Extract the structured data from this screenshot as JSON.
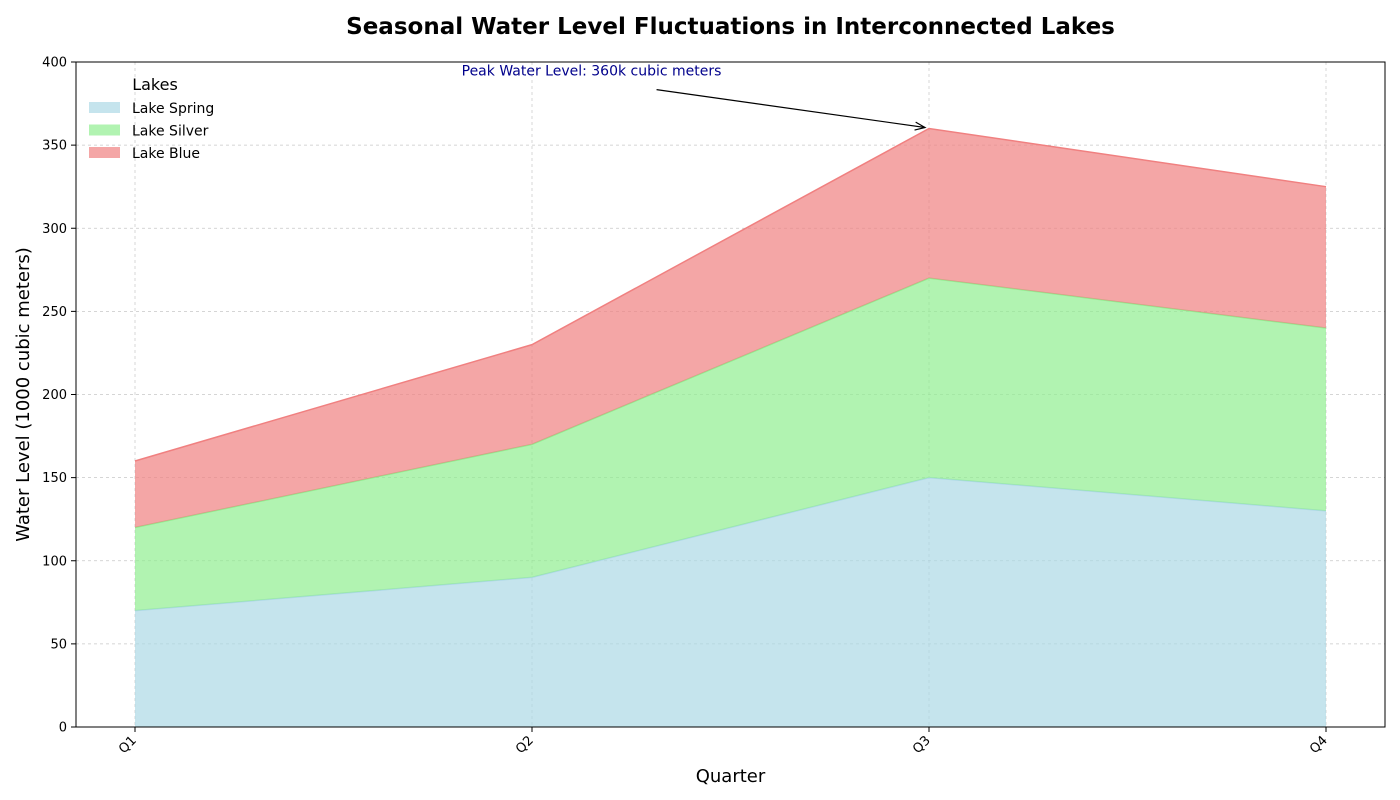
{
  "chart_data": {
    "type": "area",
    "stacked": true,
    "title": "Seasonal Water Level Fluctuations in Interconnected Lakes",
    "xlabel": "Quarter",
    "ylabel": "Water Level (1000 cubic meters)",
    "categories": [
      "Q1",
      "Q2",
      "Q3",
      "Q4"
    ],
    "ylim": [
      0,
      400
    ],
    "yticks": [
      0,
      50,
      100,
      150,
      200,
      250,
      300,
      350,
      400
    ],
    "grid": true,
    "legend": {
      "title": "Lakes",
      "placement": "top-left"
    },
    "series": [
      {
        "name": "Lake Spring",
        "values": [
          70,
          90,
          150,
          130
        ],
        "color": "#add8e6"
      },
      {
        "name": "Lake Silver",
        "values": [
          50,
          80,
          120,
          110
        ],
        "color": "#90ee90"
      },
      {
        "name": "Lake Blue",
        "values": [
          40,
          60,
          90,
          85
        ],
        "color": "#f08080"
      }
    ],
    "annotation": {
      "text": "Peak Water Level: 360k cubic meters",
      "point": {
        "x": "Q3",
        "y": 360
      },
      "text_position": {
        "x": 1.15,
        "y": 390
      },
      "color": "#00008b"
    }
  }
}
